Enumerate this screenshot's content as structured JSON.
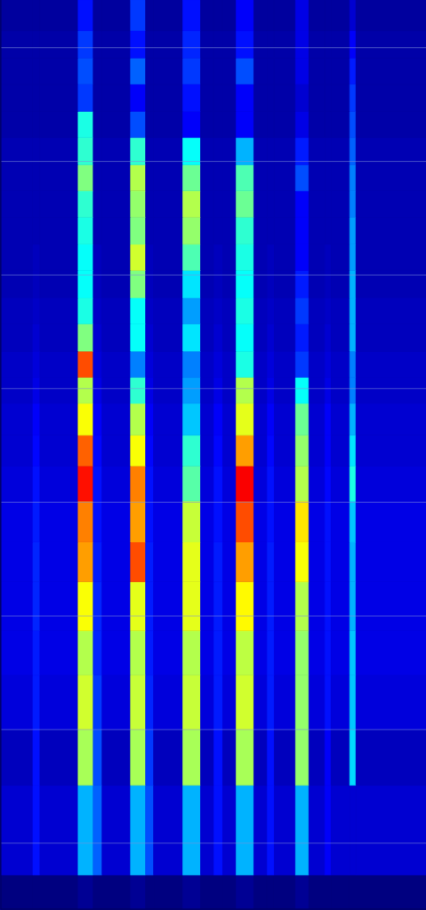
{
  "chart_data": {
    "type": "heatmap",
    "x": [
      0,
      36,
      44,
      87,
      104,
      114,
      146,
      163,
      172,
      205,
      225,
      240,
      250,
      265,
      285,
      300,
      308,
      332,
      347,
      365,
      372,
      393,
      400,
      479
    ],
    "y": [
      0,
      0.3,
      1.09,
      1.58,
      2.06,
      2.45,
      2.88,
      3.23,
      3.59,
      3.9,
      4.17,
      4.45,
      4.68,
      4.91,
      5.15,
      5.38,
      5.62,
      5.85,
      6.09,
      6.32,
      6.55,
      6.79,
      7.02,
      7.26,
      7.49,
      7.73,
      8
    ],
    "xlim": [
      0,
      479
    ],
    "ylim": [
      0,
      8
    ],
    "yticks": [
      0.58,
      1.58,
      2.58,
      3.58,
      4.58,
      5.58,
      6.58,
      7.58
    ],
    "grid": true,
    "tick_labels": false,
    "clim": [
      0,
      100
    ],
    "cells": [
      [
        0,
        0,
        0,
        2,
        0,
        0,
        2,
        0,
        0,
        2,
        0,
        0,
        0,
        2,
        0,
        0,
        0,
        2,
        0,
        0,
        0,
        0,
        0
      ],
      [
        8,
        14,
        8,
        30,
        22,
        8,
        30,
        20,
        8,
        30,
        8,
        14,
        8,
        30,
        8,
        14,
        8,
        30,
        8,
        12,
        8,
        8,
        8
      ],
      [
        6,
        14,
        6,
        54,
        20,
        6,
        54,
        18,
        6,
        54,
        6,
        14,
        6,
        54,
        6,
        14,
        6,
        52,
        6,
        12,
        6,
        34,
        6
      ],
      [
        9,
        15,
        9,
        58,
        18,
        9,
        57,
        16,
        9,
        57,
        9,
        15,
        9,
        58,
        9,
        15,
        9,
        52,
        9,
        14,
        9,
        32,
        9
      ],
      [
        10,
        15,
        10,
        55,
        16,
        10,
        55,
        15,
        10,
        55,
        10,
        15,
        10,
        56,
        10,
        15,
        10,
        52,
        10,
        14,
        10,
        32,
        10
      ],
      [
        10,
        16,
        10,
        62,
        16,
        10,
        60,
        15,
        10,
        60,
        10,
        15,
        10,
        63,
        10,
        15,
        10,
        55,
        10,
        14,
        10,
        30,
        10
      ],
      [
        10,
        16,
        10,
        72,
        15,
        10,
        80,
        15,
        10,
        60,
        10,
        15,
        10,
        72,
        10,
        15,
        10,
        62,
        10,
        14,
        10,
        30,
        10
      ],
      [
        10,
        15,
        10,
        75,
        14,
        10,
        72,
        14,
        10,
        57,
        10,
        14,
        10,
        80,
        10,
        14,
        10,
        65,
        10,
        14,
        10,
        32,
        10
      ],
      [
        9,
        14,
        9,
        86,
        14,
        9,
        75,
        14,
        9,
        46,
        9,
        14,
        9,
        88,
        9,
        14,
        9,
        55,
        9,
        13,
        9,
        40,
        9
      ],
      [
        8,
        13,
        8,
        78,
        13,
        8,
        62,
        13,
        8,
        42,
        8,
        13,
        8,
        72,
        8,
        13,
        8,
        52,
        8,
        12,
        8,
        35,
        8
      ],
      [
        8,
        12,
        8,
        62,
        12,
        8,
        55,
        12,
        8,
        32,
        8,
        12,
        8,
        60,
        8,
        12,
        8,
        48,
        8,
        12,
        8,
        30,
        8
      ],
      [
        7,
        10,
        7,
        55,
        10,
        7,
        42,
        10,
        7,
        28,
        7,
        10,
        7,
        55,
        7,
        10,
        7,
        38,
        7,
        10,
        7,
        25,
        7
      ],
      [
        7,
        9,
        7,
        80,
        9,
        7,
        25,
        9,
        7,
        25,
        7,
        9,
        7,
        40,
        7,
        9,
        7,
        18,
        7,
        9,
        7,
        25,
        7
      ],
      [
        6,
        8,
        6,
        50,
        8,
        6,
        38,
        8,
        6,
        35,
        6,
        8,
        6,
        38,
        6,
        8,
        6,
        15,
        6,
        8,
        6,
        30,
        6
      ],
      [
        6,
        7,
        6,
        40,
        7,
        6,
        38,
        7,
        6,
        28,
        6,
        7,
        6,
        40,
        6,
        7,
        6,
        18,
        6,
        7,
        6,
        30,
        6
      ],
      [
        5,
        6,
        5,
        38,
        6,
        5,
        50,
        6,
        5,
        35,
        5,
        6,
        5,
        38,
        5,
        6,
        5,
        15,
        5,
        6,
        5,
        30,
        5
      ],
      [
        5,
        6,
        5,
        38,
        6,
        5,
        58,
        6,
        5,
        45,
        5,
        6,
        5,
        40,
        5,
        6,
        5,
        12,
        5,
        6,
        5,
        28,
        5
      ],
      [
        5,
        5,
        5,
        40,
        5,
        5,
        50,
        5,
        5,
        52,
        5,
        5,
        5,
        42,
        5,
        5,
        5,
        12,
        5,
        5,
        5,
        28,
        5
      ],
      [
        5,
        5,
        5,
        42,
        5,
        5,
        52,
        5,
        5,
        55,
        5,
        5,
        5,
        48,
        5,
        5,
        5,
        12,
        5,
        5,
        5,
        25,
        5
      ],
      [
        5,
        5,
        5,
        50,
        5,
        5,
        55,
        5,
        5,
        48,
        5,
        5,
        5,
        45,
        5,
        5,
        5,
        20,
        5,
        5,
        5,
        25,
        5
      ],
      [
        5,
        5,
        5,
        42,
        5,
        5,
        42,
        5,
        5,
        38,
        5,
        5,
        5,
        30,
        5,
        5,
        5,
        15,
        5,
        5,
        5,
        22,
        5
      ],
      [
        4,
        4,
        4,
        40,
        4,
        4,
        20,
        4,
        4,
        12,
        4,
        4,
        4,
        12,
        4,
        4,
        4,
        10,
        4,
        4,
        4,
        20,
        4
      ],
      [
        4,
        4,
        4,
        18,
        4,
        4,
        12,
        4,
        4,
        14,
        4,
        4,
        4,
        12,
        4,
        4,
        4,
        8,
        4,
        4,
        4,
        18,
        4
      ],
      [
        4,
        4,
        4,
        20,
        4,
        4,
        22,
        4,
        4,
        18,
        4,
        4,
        4,
        20,
        4,
        4,
        4,
        10,
        4,
        4,
        4,
        15,
        4
      ],
      [
        4,
        4,
        4,
        18,
        4,
        4,
        14,
        4,
        4,
        16,
        4,
        4,
        4,
        14,
        4,
        4,
        4,
        10,
        4,
        4,
        4,
        12,
        4
      ],
      [
        3,
        3,
        3,
        14,
        3,
        3,
        18,
        3,
        3,
        14,
        3,
        3,
        3,
        12,
        3,
        3,
        3,
        10,
        3,
        3,
        3,
        8,
        3
      ]
    ]
  }
}
